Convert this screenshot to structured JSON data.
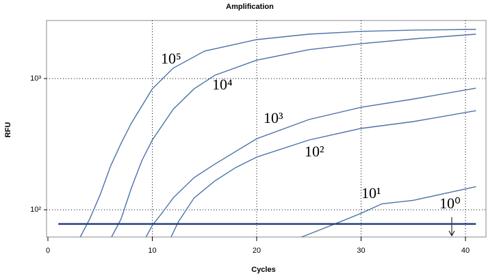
{
  "chart_data": {
    "type": "line",
    "title": "Amplification",
    "x_label": "Cycles",
    "y_label": "RFU",
    "log_y": true,
    "grid": true,
    "xlim": [
      0,
      42
    ],
    "xticks": [
      0,
      10,
      20,
      30,
      40
    ],
    "ylim": [
      62,
      2770
    ],
    "yticks": [
      {
        "value": 100,
        "label": "10²"
      },
      {
        "value": 1000,
        "label": "10³"
      }
    ],
    "threshold": 78,
    "threshold_color": "#1f3f7a",
    "threshold_x": [
      1,
      41
    ],
    "series": [
      {
        "name": "10⁵",
        "color": "#4a72a8",
        "x": [
          3.1,
          4,
          5,
          6,
          7,
          8,
          10,
          12,
          15,
          20,
          25,
          30,
          35,
          41
        ],
        "values": [
          62,
          85,
          130,
          215,
          320,
          458,
          835,
          1200,
          1620,
          1980,
          2180,
          2290,
          2340,
          2370
        ]
      },
      {
        "name": "10⁴",
        "color": "#4a72a8",
        "x": [
          6.1,
          7,
          8,
          9,
          10,
          12,
          14,
          16,
          20,
          25,
          30,
          35,
          41
        ],
        "values": [
          62,
          85,
          147,
          237,
          340,
          583,
          835,
          1060,
          1380,
          1660,
          1845,
          2005,
          2180
        ]
      },
      {
        "name": "10³",
        "color": "#4a72a8",
        "x": [
          9.4,
          10,
          11,
          12,
          14,
          16,
          20,
          25,
          30,
          35,
          41
        ],
        "values": [
          62,
          76,
          96,
          123,
          176,
          223,
          348,
          487,
          604,
          698,
          845
        ]
      },
      {
        "name": "10²",
        "color": "#4a72a8",
        "x": [
          11.8,
          12.5,
          14,
          16,
          18,
          20,
          25,
          30,
          35,
          41
        ],
        "values": [
          62,
          81,
          123,
          166,
          210,
          252,
          340,
          417,
          470,
          569
        ]
      },
      {
        "name": "10¹",
        "color": "#4a72a8",
        "x": [
          24.3,
          26,
          28,
          30,
          32,
          35,
          38,
          41
        ],
        "values": [
          62,
          70,
          81,
          94,
          111,
          118,
          133,
          150
        ]
      }
    ],
    "annotations": [
      "10⁰"
    ]
  }
}
